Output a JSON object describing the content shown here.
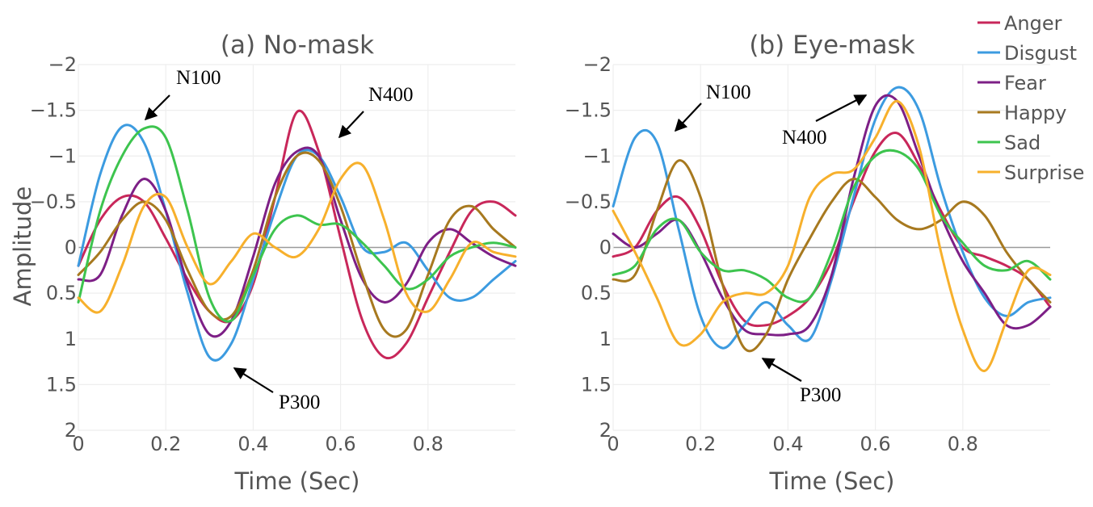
{
  "chart_data": [
    {
      "type": "line",
      "title": "(a) No-mask",
      "xlabel": "Time (Sec)",
      "ylabel": "Amplitude",
      "xlim": [
        0,
        1
      ],
      "ylim": [
        2,
        -2
      ],
      "y_reversed": true,
      "xticks": [
        "0",
        "0.2",
        "0.4",
        "0.6",
        "0.8"
      ],
      "yticks": [
        "−2",
        "−1.5",
        "−1",
        "−0.5",
        "0",
        "0.5",
        "1",
        "1.5",
        "2"
      ],
      "grid": true,
      "annotations": [
        "N100",
        "N400",
        "P300"
      ],
      "series": [
        {
          "name": "Anger",
          "color": "#c8275a",
          "x": [
            0,
            0.05,
            0.1,
            0.15,
            0.2,
            0.25,
            0.3,
            0.35,
            0.4,
            0.45,
            0.5,
            0.55,
            0.6,
            0.65,
            0.7,
            0.75,
            0.8,
            0.85,
            0.9,
            0.95,
            1.0
          ],
          "y": [
            0.2,
            -0.3,
            -0.55,
            -0.5,
            -0.1,
            0.35,
            0.7,
            0.8,
            0.4,
            -0.55,
            -1.48,
            -1.05,
            -0.1,
            0.8,
            1.2,
            1.05,
            0.55,
            0.05,
            -0.4,
            -0.5,
            -0.35
          ]
        },
        {
          "name": "Disgust",
          "color": "#3c9be0",
          "x": [
            0,
            0.05,
            0.1,
            0.15,
            0.2,
            0.25,
            0.3,
            0.35,
            0.4,
            0.45,
            0.5,
            0.55,
            0.6,
            0.65,
            0.7,
            0.75,
            0.8,
            0.85,
            0.9,
            0.95,
            1.0
          ],
          "y": [
            0.2,
            -0.8,
            -1.32,
            -1.15,
            -0.4,
            0.5,
            1.2,
            1.05,
            0.35,
            -0.4,
            -1.0,
            -1.0,
            -0.55,
            0.0,
            0.05,
            -0.05,
            0.25,
            0.55,
            0.55,
            0.35,
            0.15
          ]
        },
        {
          "name": "Fear",
          "color": "#7d1f86",
          "x": [
            0,
            0.05,
            0.1,
            0.15,
            0.2,
            0.25,
            0.3,
            0.35,
            0.4,
            0.45,
            0.5,
            0.55,
            0.6,
            0.65,
            0.7,
            0.75,
            0.8,
            0.85,
            0.9,
            0.95,
            1.0
          ],
          "y": [
            0.35,
            0.3,
            -0.35,
            -0.75,
            -0.4,
            0.4,
            0.95,
            0.8,
            0.1,
            -0.7,
            -1.05,
            -1.0,
            -0.3,
            0.35,
            0.6,
            0.4,
            -0.05,
            -0.2,
            -0.05,
            0.1,
            0.2
          ]
        },
        {
          "name": "Happy",
          "color": "#a7791f",
          "x": [
            0,
            0.05,
            0.1,
            0.15,
            0.2,
            0.25,
            0.3,
            0.35,
            0.4,
            0.45,
            0.5,
            0.55,
            0.6,
            0.65,
            0.7,
            0.75,
            0.8,
            0.85,
            0.9,
            0.95,
            1.0
          ],
          "y": [
            0.3,
            0.05,
            -0.3,
            -0.5,
            -0.3,
            0.25,
            0.7,
            0.75,
            0.25,
            -0.55,
            -1.0,
            -0.95,
            -0.45,
            0.3,
            0.9,
            0.9,
            0.3,
            -0.3,
            -0.45,
            -0.2,
            0.0
          ]
        },
        {
          "name": "Sad",
          "color": "#3dc44e",
          "x": [
            0,
            0.05,
            0.1,
            0.15,
            0.2,
            0.25,
            0.3,
            0.35,
            0.4,
            0.45,
            0.5,
            0.55,
            0.6,
            0.65,
            0.7,
            0.75,
            0.8,
            0.85,
            0.9,
            0.95,
            1.0
          ],
          "y": [
            0.6,
            -0.4,
            -1.0,
            -1.3,
            -1.2,
            -0.4,
            0.55,
            0.8,
            0.3,
            -0.2,
            -0.35,
            -0.25,
            -0.25,
            -0.05,
            0.2,
            0.45,
            0.35,
            0.1,
            0.0,
            -0.05,
            0.0
          ]
        },
        {
          "name": "Surprise",
          "color": "#f7b02c",
          "x": [
            0,
            0.05,
            0.1,
            0.15,
            0.2,
            0.25,
            0.3,
            0.35,
            0.4,
            0.45,
            0.5,
            0.55,
            0.6,
            0.65,
            0.7,
            0.75,
            0.8,
            0.85,
            0.9,
            0.95,
            1.0
          ],
          "y": [
            0.55,
            0.7,
            0.2,
            -0.45,
            -0.55,
            0.0,
            0.4,
            0.15,
            -0.15,
            0.0,
            0.1,
            -0.2,
            -0.75,
            -0.9,
            -0.3,
            0.5,
            0.7,
            0.35,
            -0.05,
            0.05,
            0.1
          ]
        }
      ]
    },
    {
      "type": "line",
      "title": "(b) Eye-mask",
      "xlabel": "Time (Sec)",
      "ylabel": "",
      "xlim": [
        0,
        1
      ],
      "ylim": [
        2,
        -2
      ],
      "y_reversed": true,
      "xticks": [
        "0",
        "0.2",
        "0.4",
        "0.6",
        "0.8"
      ],
      "yticks": [
        "−2",
        "−1.5",
        "−1",
        "−0.5",
        "0",
        "0.5",
        "1",
        "1.5",
        "2"
      ],
      "grid": true,
      "annotations": [
        "N100",
        "N400",
        "P300"
      ],
      "series": [
        {
          "name": "Anger",
          "color": "#c8275a",
          "x": [
            0,
            0.05,
            0.1,
            0.15,
            0.2,
            0.25,
            0.3,
            0.35,
            0.4,
            0.45,
            0.5,
            0.55,
            0.6,
            0.65,
            0.7,
            0.75,
            0.8,
            0.85,
            0.9,
            0.95,
            1.0
          ],
          "y": [
            0.1,
            0.0,
            -0.4,
            -0.55,
            -0.2,
            0.4,
            0.8,
            0.85,
            0.75,
            0.55,
            0.15,
            -0.5,
            -1.05,
            -1.25,
            -0.9,
            -0.4,
            0.0,
            0.1,
            0.2,
            0.35,
            0.65
          ]
        },
        {
          "name": "Disgust",
          "color": "#3c9be0",
          "x": [
            0,
            0.05,
            0.1,
            0.15,
            0.2,
            0.25,
            0.3,
            0.35,
            0.4,
            0.45,
            0.5,
            0.55,
            0.6,
            0.65,
            0.7,
            0.75,
            0.8,
            0.85,
            0.9,
            0.95,
            1.0
          ],
          "y": [
            -0.45,
            -1.2,
            -1.15,
            -0.2,
            0.75,
            1.1,
            0.85,
            0.6,
            0.85,
            1.0,
            0.35,
            -0.55,
            -1.4,
            -1.75,
            -1.5,
            -0.65,
            0.05,
            0.55,
            0.75,
            0.6,
            0.55
          ]
        },
        {
          "name": "Fear",
          "color": "#7d1f86",
          "x": [
            0,
            0.05,
            0.1,
            0.15,
            0.2,
            0.25,
            0.3,
            0.35,
            0.4,
            0.45,
            0.5,
            0.55,
            0.6,
            0.65,
            0.7,
            0.75,
            0.8,
            0.85,
            0.9,
            0.95,
            1.0
          ],
          "y": [
            -0.15,
            0.0,
            -0.15,
            -0.3,
            0.05,
            0.55,
            0.9,
            0.95,
            0.95,
            0.85,
            0.3,
            -0.75,
            -1.55,
            -1.6,
            -1.0,
            -0.35,
            0.15,
            0.5,
            0.85,
            0.85,
            0.65
          ]
        },
        {
          "name": "Happy",
          "color": "#a7791f",
          "x": [
            0,
            0.05,
            0.1,
            0.15,
            0.2,
            0.25,
            0.3,
            0.35,
            0.4,
            0.45,
            0.5,
            0.55,
            0.6,
            0.65,
            0.7,
            0.75,
            0.8,
            0.85,
            0.9,
            0.95,
            1.0
          ],
          "y": [
            0.35,
            0.3,
            -0.4,
            -0.95,
            -0.55,
            0.4,
            1.1,
            0.95,
            0.35,
            -0.1,
            -0.5,
            -0.75,
            -0.55,
            -0.3,
            -0.2,
            -0.3,
            -0.5,
            -0.35,
            0.05,
            0.35,
            0.6
          ]
        },
        {
          "name": "Sad",
          "color": "#3dc44e",
          "x": [
            0,
            0.05,
            0.1,
            0.15,
            0.2,
            0.25,
            0.3,
            0.35,
            0.4,
            0.45,
            0.5,
            0.55,
            0.6,
            0.65,
            0.7,
            0.75,
            0.8,
            0.85,
            0.9,
            0.95,
            1.0
          ],
          "y": [
            0.3,
            0.2,
            -0.2,
            -0.3,
            0.05,
            0.25,
            0.25,
            0.35,
            0.55,
            0.55,
            0.05,
            -0.65,
            -1.0,
            -1.05,
            -0.85,
            -0.35,
            -0.05,
            0.2,
            0.25,
            0.15,
            0.35
          ]
        },
        {
          "name": "Surprise",
          "color": "#f7b02c",
          "x": [
            0,
            0.05,
            0.1,
            0.15,
            0.2,
            0.25,
            0.3,
            0.35,
            0.4,
            0.45,
            0.5,
            0.55,
            0.6,
            0.65,
            0.7,
            0.75,
            0.8,
            0.85,
            0.9,
            0.95,
            1.0
          ],
          "y": [
            -0.4,
            0.05,
            0.55,
            1.05,
            0.95,
            0.6,
            0.5,
            0.5,
            0.2,
            -0.55,
            -0.8,
            -0.85,
            -1.2,
            -1.6,
            -1.1,
            0.05,
            0.9,
            1.35,
            0.8,
            0.25,
            0.3
          ]
        }
      ]
    }
  ]
}
